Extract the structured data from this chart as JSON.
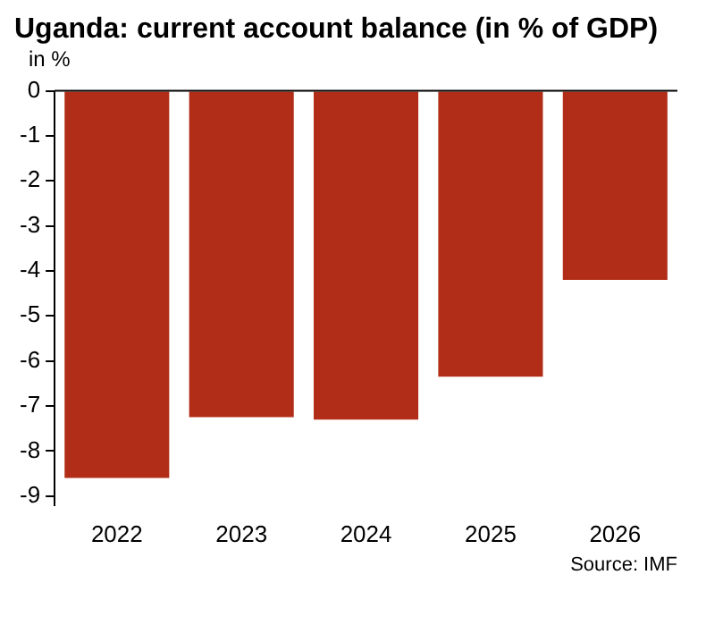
{
  "chart_data": {
    "type": "bar",
    "title": "Uganda: current account balance (in % of GDP)",
    "ylabel": "in %",
    "categories": [
      "2022",
      "2023",
      "2024",
      "2025",
      "2026"
    ],
    "values": [
      -8.6,
      -7.25,
      -7.3,
      -6.35,
      -4.2
    ],
    "color": "#b22d17",
    "ylim": [
      -9.2,
      0
    ],
    "yticks": [
      0,
      -1,
      -2,
      -3,
      -4,
      -5,
      -6,
      -7,
      -8,
      -9
    ],
    "grid": false,
    "legend": false,
    "annotations": [
      "Source: IMF"
    ]
  }
}
